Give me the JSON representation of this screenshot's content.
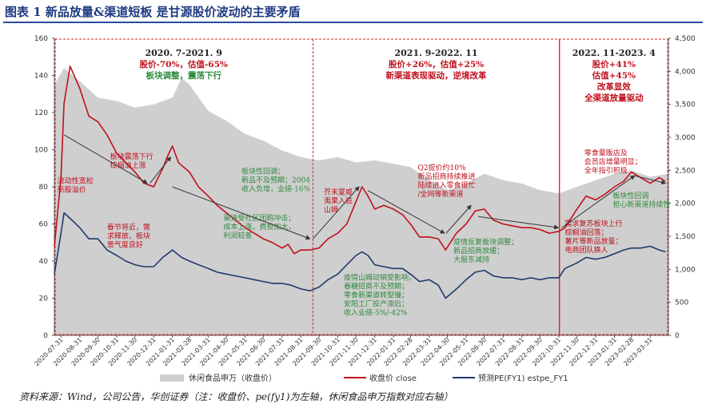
{
  "figure": {
    "title": "图表 1  新品放量&渠道短板 是甘源股价波动的主要矛盾",
    "source": "资料来源：Wind，公司公告，华创证券（注：收盘价、pe(fy1)为左轴，休闲食品申万指数对应右轴）"
  },
  "colors": {
    "title": "#1e3a82",
    "index_area": "#cfcfcf",
    "close_line": "#c0101e",
    "pe_line": "#1f3a6b",
    "divider": "#e02020",
    "green_text": "#2e8a3c",
    "red_text": "#c0101e"
  },
  "chart_data": {
    "type": "line",
    "left_axis": {
      "ylim": [
        0,
        160
      ],
      "ticks": [
        "0",
        "20",
        "40",
        "60",
        "80",
        "100",
        "120",
        "140",
        "160"
      ]
    },
    "right_axis": {
      "ylim": [
        0,
        4500
      ],
      "ticks": [
        "0",
        "500",
        "1,000",
        "1,500",
        "2,000",
        "2,500",
        "3,000",
        "3,500",
        "4,000",
        "4,500"
      ]
    },
    "x_ticks": [
      "2020-07-31",
      "2020-08-31",
      "2020-09-30",
      "2020-10-31",
      "2020-11-30",
      "2020-12-31",
      "2021-01-31",
      "2021-02-28",
      "2021-03-31",
      "2021-04-30",
      "2021-05-31",
      "2021-06-30",
      "2021-07-31",
      "2021-08-31",
      "2021-09-30",
      "2021-10-31",
      "2021-11-30",
      "2021-12-31",
      "2022-01-31",
      "2022-02-28",
      "2022-03-31",
      "2022-04-30",
      "2022-05-31",
      "2022-06-30",
      "2022-07-31",
      "2022-08-31",
      "2022-09-30",
      "2022-10-31",
      "2022-11-30",
      "2022-12-31",
      "2023-01-31",
      "2023-02-28",
      "2023-03-31"
    ],
    "x_range": [
      "2020-07-20",
      "2023-04-30"
    ],
    "series": [
      {
        "name": "休闲食品申万（收盘价）",
        "axis": "right",
        "style": "area",
        "x": [
          "2020-07-20",
          "2020-08-05",
          "2020-08-31",
          "2020-09-30",
          "2020-10-31",
          "2020-11-30",
          "2020-12-31",
          "2021-01-31",
          "2021-02-15",
          "2021-02-28",
          "2021-03-31",
          "2021-04-30",
          "2021-05-31",
          "2021-06-30",
          "2021-07-31",
          "2021-08-31",
          "2021-09-30",
          "2021-10-31",
          "2021-11-30",
          "2021-12-31",
          "2022-01-31",
          "2022-02-28",
          "2022-03-31",
          "2022-04-30",
          "2022-05-31",
          "2022-06-30",
          "2022-07-31",
          "2022-08-31",
          "2022-09-30",
          "2022-10-31",
          "2022-11-30",
          "2022-12-31",
          "2023-01-31",
          "2023-02-28",
          "2023-03-31",
          "2023-04-30"
        ],
        "values": [
          3800,
          4050,
          3850,
          3600,
          3550,
          3450,
          3500,
          3600,
          3900,
          3800,
          3400,
          3250,
          3050,
          2950,
          2800,
          2700,
          2650,
          2700,
          2620,
          2650,
          2600,
          2550,
          2350,
          2200,
          2300,
          2450,
          2350,
          2300,
          2200,
          2150,
          2250,
          2350,
          2450,
          2500,
          2400,
          2450
        ]
      },
      {
        "name": "收盘价 close",
        "axis": "left",
        "style": "line",
        "x": [
          "2020-07-20",
          "2020-07-31",
          "2020-08-05",
          "2020-08-15",
          "2020-08-31",
          "2020-09-15",
          "2020-09-30",
          "2020-10-15",
          "2020-10-31",
          "2020-11-15",
          "2020-11-30",
          "2020-12-15",
          "2020-12-31",
          "2021-01-15",
          "2021-01-25",
          "2021-01-31",
          "2021-02-10",
          "2021-02-28",
          "2021-03-15",
          "2021-03-31",
          "2021-04-15",
          "2021-04-30",
          "2021-05-15",
          "2021-05-31",
          "2021-06-15",
          "2021-06-30",
          "2021-07-15",
          "2021-07-31",
          "2021-08-10",
          "2021-08-20",
          "2021-08-31",
          "2021-09-15",
          "2021-09-30",
          "2021-10-15",
          "2021-10-31",
          "2021-11-15",
          "2021-11-30",
          "2021-12-10",
          "2021-12-20",
          "2021-12-31",
          "2022-01-15",
          "2022-01-31",
          "2022-02-15",
          "2022-02-28",
          "2022-03-15",
          "2022-03-31",
          "2022-04-15",
          "2022-04-27",
          "2022-05-15",
          "2022-05-31",
          "2022-06-15",
          "2022-06-30",
          "2022-07-15",
          "2022-07-31",
          "2022-08-15",
          "2022-08-31",
          "2022-09-15",
          "2022-09-30",
          "2022-10-15",
          "2022-10-31",
          "2022-11-10",
          "2022-11-30",
          "2022-12-15",
          "2022-12-31",
          "2023-01-15",
          "2023-01-31",
          "2023-02-15",
          "2023-02-28",
          "2023-03-10",
          "2023-03-20",
          "2023-03-31",
          "2023-04-15",
          "2023-04-25"
        ],
        "values": [
          48,
          85,
          125,
          145,
          133,
          118,
          115,
          108,
          98,
          93,
          88,
          82,
          80,
          90,
          98,
          102,
          93,
          88,
          80,
          75,
          70,
          66,
          62,
          58,
          55,
          52,
          50,
          47,
          49,
          44,
          46,
          46,
          47,
          52,
          55,
          60,
          72,
          80,
          75,
          68,
          70,
          68,
          65,
          60,
          53,
          53,
          52,
          46,
          55,
          60,
          67,
          68,
          62,
          60,
          59,
          58,
          58,
          57,
          55,
          56,
          58,
          68,
          75,
          73,
          76,
          80,
          83,
          88,
          86,
          84,
          82,
          85,
          83
        ]
      },
      {
        "name": "预测PE(FY1) estpe_FY1",
        "axis": "left",
        "style": "line",
        "x": [
          "2020-07-20",
          "2020-07-31",
          "2020-08-05",
          "2020-08-15",
          "2020-08-31",
          "2020-09-15",
          "2020-09-30",
          "2020-10-15",
          "2020-10-31",
          "2020-11-15",
          "2020-11-30",
          "2020-12-15",
          "2020-12-31",
          "2021-01-15",
          "2021-01-31",
          "2021-02-15",
          "2021-02-28",
          "2021-03-15",
          "2021-03-31",
          "2021-04-15",
          "2021-04-30",
          "2021-05-15",
          "2021-05-31",
          "2021-06-15",
          "2021-06-30",
          "2021-07-15",
          "2021-07-31",
          "2021-08-15",
          "2021-08-31",
          "2021-09-15",
          "2021-09-30",
          "2021-10-15",
          "2021-10-31",
          "2021-11-15",
          "2021-11-30",
          "2021-12-10",
          "2021-12-20",
          "2021-12-31",
          "2022-01-15",
          "2022-01-31",
          "2022-02-15",
          "2022-02-28",
          "2022-03-15",
          "2022-03-31",
          "2022-04-15",
          "2022-04-27",
          "2022-05-15",
          "2022-05-31",
          "2022-06-15",
          "2022-06-30",
          "2022-07-15",
          "2022-07-31",
          "2022-08-15",
          "2022-08-31",
          "2022-09-15",
          "2022-09-30",
          "2022-10-15",
          "2022-10-31",
          "2022-11-10",
          "2022-11-30",
          "2022-12-15",
          "2022-12-31",
          "2023-01-15",
          "2023-01-31",
          "2023-02-15",
          "2023-02-28",
          "2023-03-15",
          "2023-03-31",
          "2023-04-15",
          "2023-04-25"
        ],
        "values": [
          33,
          55,
          66,
          63,
          58,
          52,
          52,
          46,
          43,
          40,
          38,
          37,
          37,
          42,
          46,
          42,
          40,
          38,
          36,
          34,
          33,
          32,
          31,
          30,
          29,
          28,
          28,
          27,
          25,
          24,
          26,
          30,
          33,
          38,
          43,
          45,
          43,
          38,
          37,
          36,
          36,
          33,
          29,
          30,
          27,
          20,
          25,
          30,
          34,
          35,
          32,
          31,
          31,
          30,
          31,
          30,
          31,
          31,
          36,
          39,
          42,
          41,
          42,
          44,
          46,
          47,
          47,
          48,
          46,
          45
        ]
      }
    ],
    "period_dividers": [
      "2021-09-20",
      "2022-11-01"
    ],
    "periods": [
      {
        "range": "2020. 7-2021. 9",
        "line1": "股价-70%，估值-65%",
        "line2": "板块调整，震荡下行"
      },
      {
        "range": "2021. 9-2022. 11",
        "line1": "股价+26%，估值+25%",
        "line2": "新渠道表现驱动，逆境改革"
      },
      {
        "range": "2022. 11-2023. 4",
        "line1": "股价+41%",
        "line2": "估值+45%",
        "line3": "改革显效",
        "line4": "全渠道放量驱动"
      }
    ],
    "annotations": [
      {
        "lines": [
          "流动性宽松",
          "新股溢价"
        ],
        "color": "red",
        "x": "2020-07-25",
        "y": 82
      },
      {
        "lines": [
          "板块震荡下行",
          "棕榈油上涨"
        ],
        "color": "red",
        "x": "2020-10-20",
        "y": 95
      },
      {
        "lines": [
          "春节将近，需",
          "求释放，板块",
          "景气度良好"
        ],
        "color": "red",
        "x": "2020-10-15",
        "y": 57
      },
      {
        "lines": [
          "板块性回调；",
          "新品不及预期；2004",
          "收入负增，业绩-16%"
        ],
        "color": "green",
        "x": "2021-05-25",
        "y": 87
      },
      {
        "lines": [
          "渠道受社区团购冲击；",
          "成本上涨，费投加大，",
          "利润较差"
        ],
        "color": "green",
        "x": "2021-04-25",
        "y": 62
      },
      {
        "lines": [
          "芥末夏威",
          "夷果入驻",
          "山姆"
        ],
        "color": "red",
        "x": "2021-10-08",
        "y": 76
      },
      {
        "lines": [
          "Q2提价约10%",
          "新品招商持续推进",
          "陆续进入零食很忙",
          "/全网等新渠道"
        ],
        "color": "red",
        "x": "2022-03-12",
        "y": 89
      },
      {
        "lines": [
          "疫情山姆动销受影响，",
          "春糖招商不及预期；",
          "零食新渠道转型慢；",
          "安阳工厂投产滞后；",
          "收入业绩-5%/-42%"
        ],
        "color": "green",
        "x": "2021-11-10",
        "y": 30
      },
      {
        "lines": [
          "疫情反复板块调整；",
          "新品招商放缓；",
          "大股东减持"
        ],
        "color": "green",
        "x": "2022-05-10",
        "y": 49
      },
      {
        "lines": [
          "零食量贩店及",
          "会员店增量明显；",
          "全年指引积极"
        ],
        "color": "red",
        "x": "2022-12-12",
        "y": 97
      },
      {
        "lines": [
          "需求复苏板块上行",
          "棕榈油回落；",
          "薯片等新品放量；",
          "电商团队换人"
        ],
        "color": "red",
        "x": "2022-11-10",
        "y": 59
      },
      {
        "lines": [
          "板块性回调",
          "担心新渠道持续性"
        ],
        "color": "green",
        "x": "2023-01-28",
        "y": 74
      }
    ],
    "legend": {
      "placement": "bottom",
      "entries": [
        "休闲食品申万（收盘价）",
        "收盘价 close",
        "预测PE(FY1) estpe_FY1"
      ]
    }
  }
}
